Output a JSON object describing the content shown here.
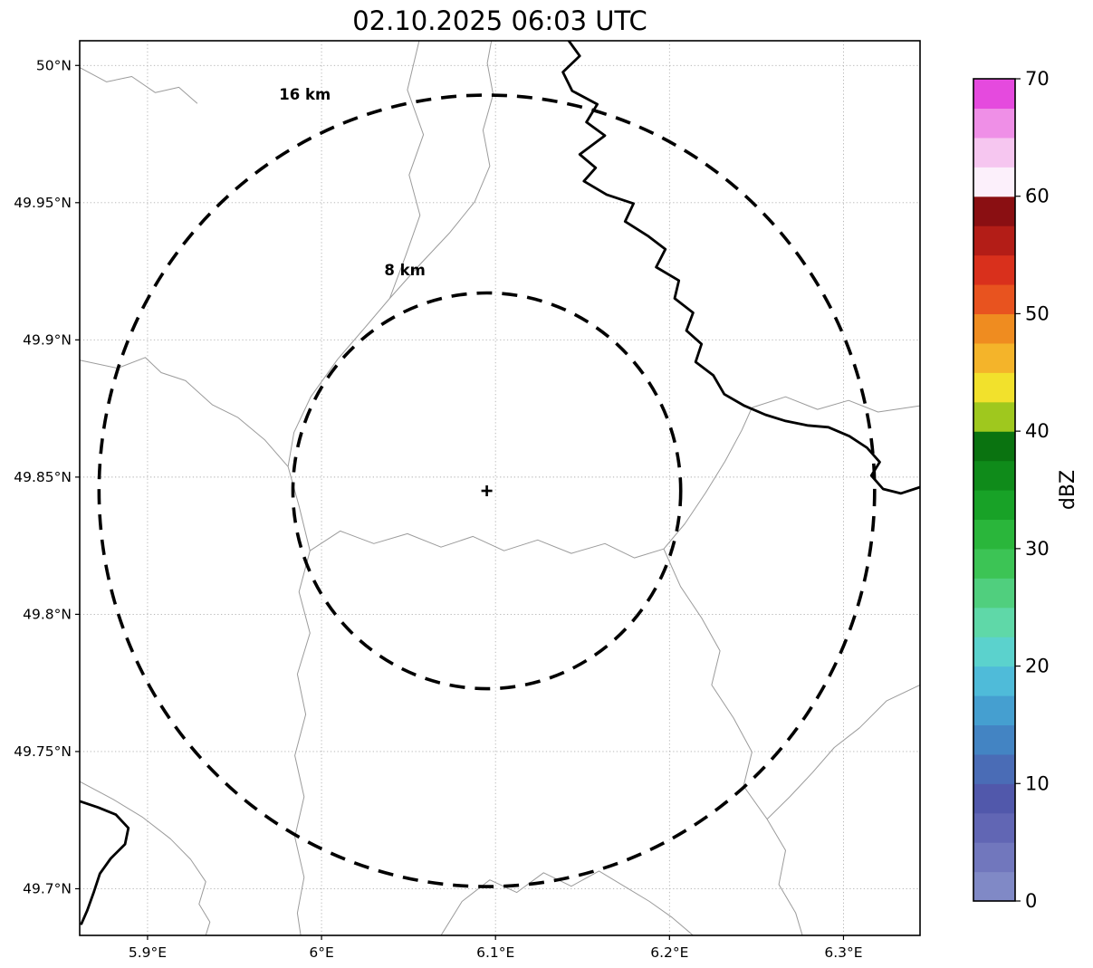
{
  "chart_data": {
    "type": "heatmap",
    "title": "02.10.2025 06:03 UTC",
    "xlabel": "",
    "ylabel": "",
    "xlim": [
      5.861,
      6.344
    ],
    "ylim": [
      49.683,
      50.009
    ],
    "grid": true,
    "xticks": [
      {
        "value": 5.9,
        "label": "5.9°E"
      },
      {
        "value": 6.0,
        "label": "6°E"
      },
      {
        "value": 6.1,
        "label": "6.1°E"
      },
      {
        "value": 6.2,
        "label": "6.2°E"
      },
      {
        "value": 6.3,
        "label": "6.3°E"
      }
    ],
    "yticks": [
      {
        "value": 50.0,
        "label": "50°N"
      },
      {
        "value": 49.95,
        "label": "49.95°N"
      },
      {
        "value": 49.9,
        "label": "49.9°N"
      },
      {
        "value": 49.85,
        "label": "49.85°N"
      },
      {
        "value": 49.8,
        "label": "49.8°N"
      },
      {
        "value": 49.75,
        "label": "49.75°N"
      },
      {
        "value": 49.7,
        "label": "49.7°N"
      }
    ],
    "values": [],
    "radar": {
      "center": {
        "lon": 6.095,
        "lat": 49.845
      },
      "range_rings": [
        {
          "radius_km": 8,
          "label": "8 km",
          "label_pos": {
            "fx": 0.387,
            "fy": 0.262
          }
        },
        {
          "radius_km": 16,
          "label": "16 km",
          "label_pos": {
            "fx": 0.268,
            "fy": 0.066
          }
        }
      ]
    },
    "colorbar": {
      "label": "dBZ",
      "min": 0,
      "max": 70,
      "ticks": [
        {
          "value": 0,
          "label": "0"
        },
        {
          "value": 10,
          "label": "10"
        },
        {
          "value": 20,
          "label": "20"
        },
        {
          "value": 30,
          "label": "30"
        },
        {
          "value": 40,
          "label": "40"
        },
        {
          "value": 50,
          "label": "50"
        },
        {
          "value": 60,
          "label": "60"
        },
        {
          "value": 70,
          "label": "70"
        }
      ],
      "segments": [
        {
          "from": 0,
          "to": 2.5,
          "color": "#8089c6"
        },
        {
          "from": 2.5,
          "to": 5,
          "color": "#7177bd"
        },
        {
          "from": 5,
          "to": 7.5,
          "color": "#6166b4"
        },
        {
          "from": 7.5,
          "to": 10,
          "color": "#5158ab"
        },
        {
          "from": 10,
          "to": 12.5,
          "color": "#4a6cb6"
        },
        {
          "from": 12.5,
          "to": 15,
          "color": "#4384c3"
        },
        {
          "from": 15,
          "to": 17.5,
          "color": "#459fd0"
        },
        {
          "from": 17.5,
          "to": 20,
          "color": "#4fbbd9"
        },
        {
          "from": 20,
          "to": 22.5,
          "color": "#5bd2cd"
        },
        {
          "from": 22.5,
          "to": 25,
          "color": "#5fd8a8"
        },
        {
          "from": 25,
          "to": 27.5,
          "color": "#50cf7e"
        },
        {
          "from": 27.5,
          "to": 30,
          "color": "#3cc455"
        },
        {
          "from": 30,
          "to": 32.5,
          "color": "#2ab63b"
        },
        {
          "from": 32.5,
          "to": 35,
          "color": "#18a227"
        },
        {
          "from": 35,
          "to": 37.5,
          "color": "#0f8b1a"
        },
        {
          "from": 37.5,
          "to": 40,
          "color": "#0a7310"
        },
        {
          "from": 40,
          "to": 42.5,
          "color": "#9fc81e"
        },
        {
          "from": 42.5,
          "to": 45,
          "color": "#f2e12c"
        },
        {
          "from": 45,
          "to": 47.5,
          "color": "#f4b42a"
        },
        {
          "from": 47.5,
          "to": 50,
          "color": "#ef8c20"
        },
        {
          "from": 50,
          "to": 52.5,
          "color": "#e8531f"
        },
        {
          "from": 52.5,
          "to": 55,
          "color": "#d9301c"
        },
        {
          "from": 55,
          "to": 57.5,
          "color": "#b31d17"
        },
        {
          "from": 57.5,
          "to": 60,
          "color": "#8a0f12"
        },
        {
          "from": 60,
          "to": 62.5,
          "color": "#fcf0fb"
        },
        {
          "from": 62.5,
          "to": 65,
          "color": "#f6c6f0"
        },
        {
          "from": 65,
          "to": 67.5,
          "color": "#ef8fe7"
        },
        {
          "from": 67.5,
          "to": 70,
          "color": "#e54ade"
        }
      ]
    }
  },
  "map_geometry": {
    "thick_lines": [
      [
        [
          0.582,
          0.0
        ],
        [
          0.595,
          0.017
        ],
        [
          0.575,
          0.035
        ],
        [
          0.586,
          0.056
        ],
        [
          0.616,
          0.071
        ],
        [
          0.603,
          0.091
        ],
        [
          0.625,
          0.106
        ],
        [
          0.595,
          0.127
        ],
        [
          0.614,
          0.142
        ],
        [
          0.6,
          0.157
        ],
        [
          0.627,
          0.172
        ],
        [
          0.659,
          0.182
        ],
        [
          0.649,
          0.202
        ],
        [
          0.676,
          0.218
        ],
        [
          0.697,
          0.233
        ],
        [
          0.686,
          0.253
        ],
        [
          0.713,
          0.268
        ],
        [
          0.708,
          0.288
        ],
        [
          0.73,
          0.304
        ],
        [
          0.722,
          0.324
        ],
        [
          0.74,
          0.339
        ],
        [
          0.733,
          0.359
        ],
        [
          0.754,
          0.374
        ],
        [
          0.767,
          0.395
        ],
        [
          0.791,
          0.408
        ],
        [
          0.816,
          0.418
        ],
        [
          0.84,
          0.425
        ],
        [
          0.866,
          0.43
        ],
        [
          0.891,
          0.432
        ],
        [
          0.916,
          0.442
        ],
        [
          0.937,
          0.455
        ],
        [
          0.952,
          0.471
        ],
        [
          0.942,
          0.486
        ],
        [
          0.956,
          0.501
        ],
        [
          0.977,
          0.506
        ],
        [
          1.0,
          0.499
        ]
      ],
      [
        [
          0.0,
          0.85
        ],
        [
          0.022,
          0.857
        ],
        [
          0.043,
          0.865
        ],
        [
          0.058,
          0.88
        ],
        [
          0.054,
          0.898
        ],
        [
          0.037,
          0.914
        ],
        [
          0.024,
          0.931
        ],
        [
          0.017,
          0.951
        ],
        [
          0.009,
          0.972
        ],
        [
          0.002,
          0.987
        ]
      ]
    ],
    "thin_lines": [
      [
        [
          0.404,
          0.0
        ],
        [
          0.39,
          0.055
        ],
        [
          0.409,
          0.105
        ],
        [
          0.392,
          0.15
        ],
        [
          0.405,
          0.195
        ],
        [
          0.388,
          0.24
        ],
        [
          0.369,
          0.288
        ],
        [
          0.34,
          0.32
        ],
        [
          0.307,
          0.356
        ],
        [
          0.275,
          0.398
        ],
        [
          0.255,
          0.438
        ],
        [
          0.248,
          0.476
        ]
      ],
      [
        [
          0.0,
          0.357
        ],
        [
          0.045,
          0.366
        ],
        [
          0.078,
          0.354
        ],
        [
          0.097,
          0.371
        ],
        [
          0.126,
          0.38
        ],
        [
          0.158,
          0.407
        ],
        [
          0.188,
          0.421
        ],
        [
          0.22,
          0.446
        ],
        [
          0.248,
          0.476
        ]
      ],
      [
        [
          0.248,
          0.476
        ],
        [
          0.261,
          0.52
        ],
        [
          0.274,
          0.57
        ],
        [
          0.261,
          0.616
        ],
        [
          0.274,
          0.662
        ],
        [
          0.259,
          0.708
        ],
        [
          0.269,
          0.753
        ],
        [
          0.256,
          0.799
        ],
        [
          0.267,
          0.845
        ],
        [
          0.256,
          0.89
        ],
        [
          0.267,
          0.935
        ],
        [
          0.259,
          0.975
        ],
        [
          0.263,
          1.0
        ]
      ],
      [
        [
          0.274,
          0.57
        ],
        [
          0.31,
          0.548
        ],
        [
          0.35,
          0.562
        ],
        [
          0.39,
          0.551
        ],
        [
          0.43,
          0.566
        ],
        [
          0.468,
          0.554
        ],
        [
          0.505,
          0.57
        ],
        [
          0.545,
          0.558
        ],
        [
          0.585,
          0.573
        ],
        [
          0.625,
          0.562
        ],
        [
          0.66,
          0.578
        ],
        [
          0.695,
          0.568
        ],
        [
          0.72,
          0.54
        ],
        [
          0.745,
          0.505
        ],
        [
          0.768,
          0.47
        ],
        [
          0.788,
          0.435
        ],
        [
          0.8,
          0.41
        ]
      ],
      [
        [
          0.695,
          0.568
        ],
        [
          0.715,
          0.61
        ],
        [
          0.74,
          0.645
        ],
        [
          0.762,
          0.682
        ],
        [
          0.752,
          0.72
        ],
        [
          0.778,
          0.757
        ],
        [
          0.8,
          0.795
        ],
        [
          0.79,
          0.833
        ],
        [
          0.818,
          0.87
        ],
        [
          0.84,
          0.905
        ],
        [
          0.832,
          0.943
        ],
        [
          0.852,
          0.975
        ],
        [
          0.86,
          1.0
        ]
      ],
      [
        [
          1.0,
          0.72
        ],
        [
          0.96,
          0.738
        ],
        [
          0.928,
          0.768
        ],
        [
          0.898,
          0.79
        ],
        [
          0.872,
          0.818
        ],
        [
          0.845,
          0.845
        ],
        [
          0.818,
          0.87
        ]
      ],
      [
        [
          0.43,
          1.0
        ],
        [
          0.455,
          0.962
        ],
        [
          0.488,
          0.938
        ],
        [
          0.52,
          0.952
        ],
        [
          0.552,
          0.93
        ],
        [
          0.585,
          0.945
        ],
        [
          0.618,
          0.928
        ],
        [
          0.648,
          0.945
        ],
        [
          0.678,
          0.962
        ],
        [
          0.705,
          0.98
        ],
        [
          0.73,
          1.0
        ]
      ],
      [
        [
          0.0,
          0.828
        ],
        [
          0.04,
          0.848
        ],
        [
          0.075,
          0.868
        ],
        [
          0.108,
          0.892
        ],
        [
          0.132,
          0.915
        ],
        [
          0.15,
          0.94
        ],
        [
          0.142,
          0.965
        ],
        [
          0.155,
          0.985
        ],
        [
          0.15,
          1.0
        ]
      ],
      [
        [
          0.0,
          0.03
        ],
        [
          0.032,
          0.046
        ],
        [
          0.062,
          0.04
        ],
        [
          0.09,
          0.058
        ],
        [
          0.118,
          0.052
        ],
        [
          0.14,
          0.07
        ]
      ],
      [
        [
          0.369,
          0.288
        ],
        [
          0.405,
          0.25
        ],
        [
          0.44,
          0.215
        ],
        [
          0.47,
          0.18
        ],
        [
          0.488,
          0.14
        ],
        [
          0.48,
          0.1
        ],
        [
          0.492,
          0.06
        ],
        [
          0.485,
          0.025
        ],
        [
          0.49,
          0.0
        ]
      ],
      [
        [
          0.8,
          0.41
        ],
        [
          0.84,
          0.398
        ],
        [
          0.878,
          0.412
        ],
        [
          0.915,
          0.402
        ],
        [
          0.95,
          0.415
        ],
        [
          1.0,
          0.408
        ]
      ]
    ]
  }
}
